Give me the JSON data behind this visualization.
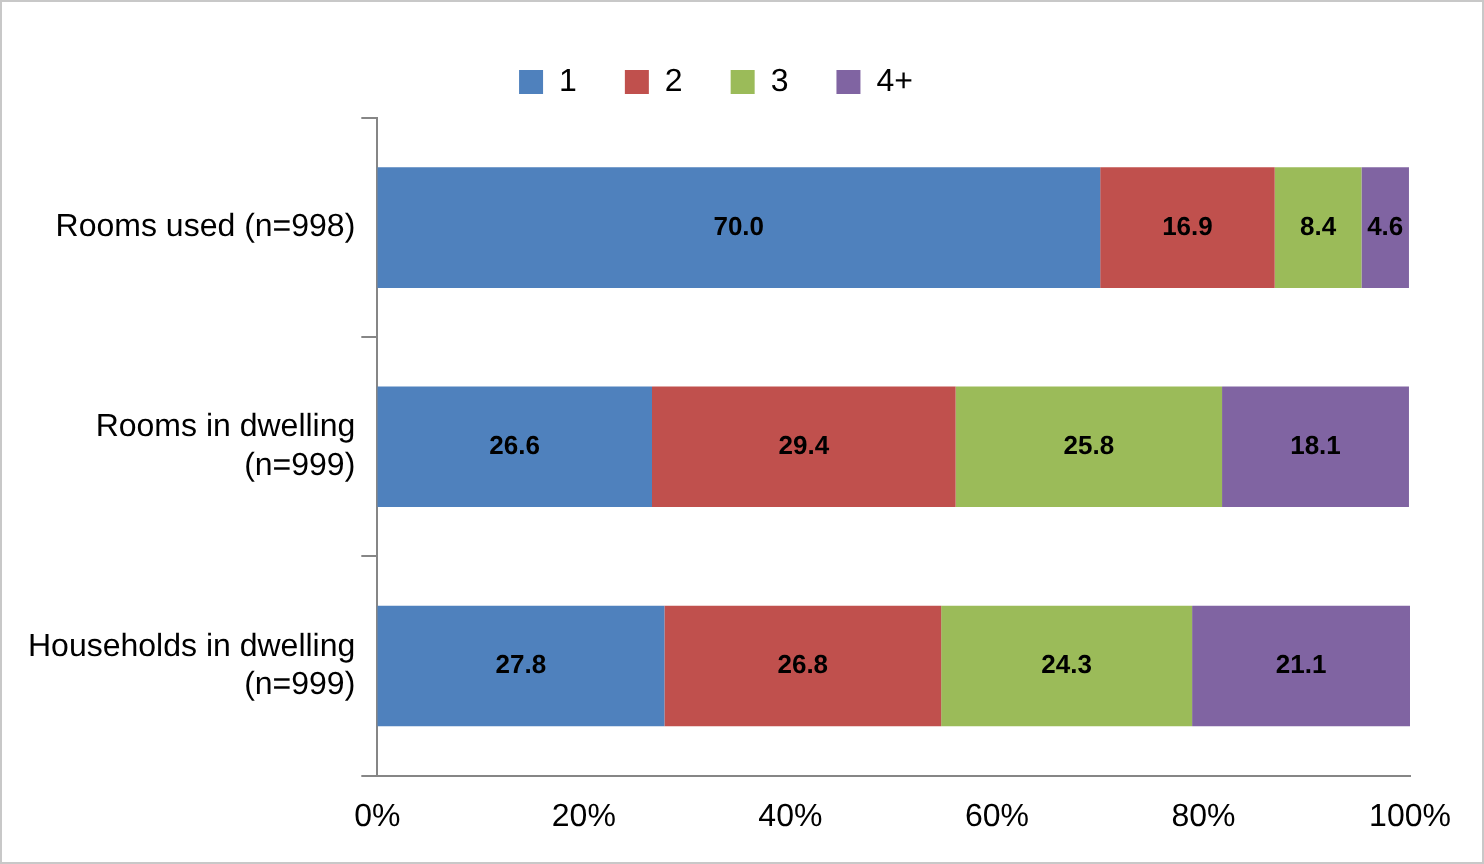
{
  "chart_data": {
    "type": "bar",
    "orientation": "horizontal",
    "stacked": true,
    "categories": [
      "Rooms used (n=998)",
      "Rooms in dwelling (n=999)",
      "Households in dwelling (n=999)"
    ],
    "series": [
      {
        "name": "1",
        "color": "#4f81bd",
        "values": [
          70.0,
          26.6,
          27.8
        ],
        "value_labels": [
          "70.0",
          "26.6",
          "27.8"
        ]
      },
      {
        "name": "2",
        "color": "#c0504d",
        "values": [
          16.9,
          29.4,
          26.8
        ],
        "value_labels": [
          "16.9",
          "29.4",
          "26.8"
        ]
      },
      {
        "name": "3",
        "color": "#9bbb59",
        "values": [
          8.4,
          25.8,
          24.3
        ],
        "value_labels": [
          "8.4",
          "25.8",
          "24.3"
        ]
      },
      {
        "name": "4+",
        "color": "#8064a2",
        "values": [
          4.6,
          18.1,
          21.1
        ],
        "value_labels": [
          "4.6",
          "18.1",
          "21.1"
        ]
      }
    ],
    "xlim": [
      0,
      100
    ],
    "xticks": [
      {
        "value": 0,
        "label": "0%"
      },
      {
        "value": 20,
        "label": "20%"
      },
      {
        "value": 40,
        "label": "40%"
      },
      {
        "value": 60,
        "label": "60%"
      },
      {
        "value": 80,
        "label": "80%"
      },
      {
        "value": 100,
        "label": "100%"
      }
    ],
    "grid": false,
    "legend": "top"
  }
}
